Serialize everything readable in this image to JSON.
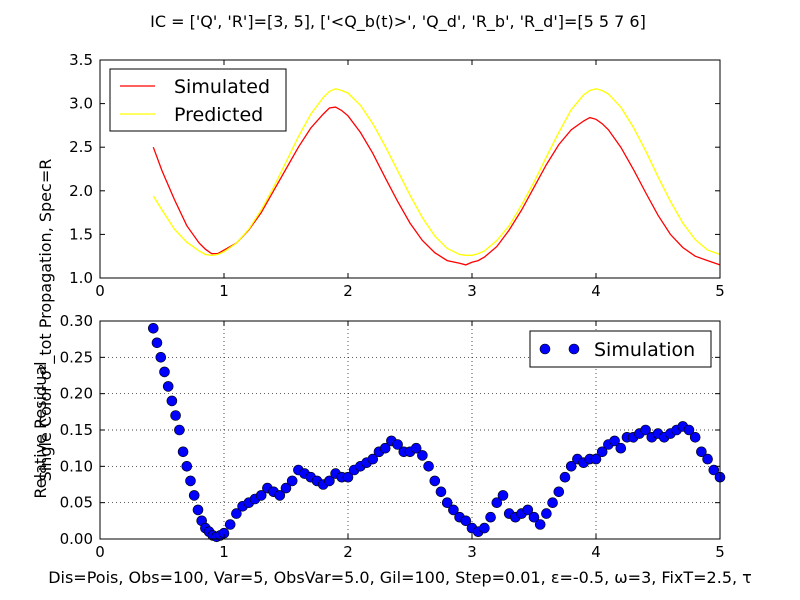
{
  "title": "IC = ['Q', 'R']=[3, 5], ['<Q_b(t)>', 'Q_d', 'R_b', 'R_d']=[5 5 7 6]",
  "shared_ylabel": "Single Color σ²_tot  Propagation, Spec=R",
  "footer_xlabel": "Dis=Pois, Obs=100, Var=5, ObsVar=5.0, Gil=100, Step=0.01, ε=-0.5, ω=3, FixT=2.5, τ",
  "colors": {
    "simulated": "#ff0000",
    "predicted": "#ffff00",
    "simulation": "#0000ff"
  },
  "chart_data": [
    {
      "type": "line",
      "xlim": [
        0,
        5
      ],
      "ylim": [
        1.0,
        3.5
      ],
      "xticks": [
        "0",
        "1",
        "2",
        "3",
        "4",
        "5"
      ],
      "yticks": [
        "1.0",
        "1.5",
        "2.0",
        "2.5",
        "3.0",
        "3.5"
      ],
      "grid": false,
      "legend_position": "top-left",
      "series": [
        {
          "name": "Simulated",
          "x": [
            0.43,
            0.5,
            0.6,
            0.7,
            0.8,
            0.85,
            0.9,
            0.95,
            1.0,
            1.1,
            1.2,
            1.3,
            1.4,
            1.5,
            1.6,
            1.7,
            1.8,
            1.85,
            1.9,
            1.95,
            2.0,
            2.1,
            2.2,
            2.3,
            2.4,
            2.5,
            2.6,
            2.7,
            2.8,
            2.9,
            2.95,
            3.0,
            3.05,
            3.1,
            3.2,
            3.3,
            3.4,
            3.5,
            3.6,
            3.7,
            3.8,
            3.9,
            3.95,
            4.0,
            4.05,
            4.1,
            4.2,
            4.3,
            4.4,
            4.5,
            4.6,
            4.7,
            4.8,
            4.9,
            5.0
          ],
          "y": [
            2.5,
            2.23,
            1.9,
            1.6,
            1.4,
            1.33,
            1.28,
            1.28,
            1.32,
            1.4,
            1.55,
            1.75,
            2.0,
            2.25,
            2.5,
            2.72,
            2.88,
            2.95,
            2.96,
            2.92,
            2.86,
            2.67,
            2.43,
            2.15,
            1.88,
            1.63,
            1.43,
            1.29,
            1.2,
            1.17,
            1.15,
            1.18,
            1.2,
            1.24,
            1.36,
            1.55,
            1.78,
            2.04,
            2.3,
            2.53,
            2.7,
            2.8,
            2.84,
            2.82,
            2.77,
            2.7,
            2.5,
            2.25,
            1.98,
            1.72,
            1.5,
            1.35,
            1.25,
            1.2,
            1.15
          ]
        },
        {
          "name": "Predicted",
          "x": [
            0.43,
            0.5,
            0.6,
            0.7,
            0.8,
            0.85,
            0.9,
            0.95,
            1.0,
            1.1,
            1.2,
            1.3,
            1.4,
            1.5,
            1.6,
            1.7,
            1.8,
            1.85,
            1.9,
            1.95,
            2.0,
            2.1,
            2.2,
            2.3,
            2.4,
            2.5,
            2.6,
            2.7,
            2.8,
            2.9,
            2.95,
            3.0,
            3.05,
            3.1,
            3.2,
            3.3,
            3.4,
            3.5,
            3.6,
            3.7,
            3.8,
            3.9,
            3.95,
            4.0,
            4.05,
            4.1,
            4.2,
            4.3,
            4.4,
            4.5,
            4.6,
            4.7,
            4.8,
            4.9,
            5.0
          ],
          "y": [
            1.94,
            1.78,
            1.56,
            1.41,
            1.31,
            1.27,
            1.26,
            1.27,
            1.3,
            1.4,
            1.56,
            1.78,
            2.04,
            2.33,
            2.62,
            2.88,
            3.07,
            3.14,
            3.17,
            3.15,
            3.12,
            2.98,
            2.77,
            2.51,
            2.23,
            1.95,
            1.69,
            1.48,
            1.34,
            1.27,
            1.26,
            1.26,
            1.28,
            1.31,
            1.43,
            1.6,
            1.84,
            2.1,
            2.39,
            2.67,
            2.93,
            3.1,
            3.15,
            3.17,
            3.15,
            3.11,
            2.96,
            2.73,
            2.46,
            2.16,
            1.88,
            1.63,
            1.44,
            1.32,
            1.27
          ]
        }
      ]
    },
    {
      "type": "scatter",
      "xlim": [
        0,
        5
      ],
      "ylim": [
        0.0,
        0.3
      ],
      "xticks": [
        "0",
        "1",
        "2",
        "3",
        "4",
        "5"
      ],
      "yticks": [
        "0.00",
        "0.05",
        "0.10",
        "0.15",
        "0.20",
        "0.25",
        "0.30"
      ],
      "xlabel": "",
      "ylabel": "Relative Residual",
      "grid": true,
      "legend_position": "top-right",
      "series": [
        {
          "name": "Simulation",
          "x": [
            0.43,
            0.46,
            0.49,
            0.52,
            0.55,
            0.58,
            0.61,
            0.64,
            0.67,
            0.7,
            0.73,
            0.76,
            0.79,
            0.82,
            0.85,
            0.88,
            0.91,
            0.94,
            0.97,
            1.0,
            1.05,
            1.1,
            1.15,
            1.2,
            1.25,
            1.3,
            1.35,
            1.4,
            1.45,
            1.5,
            1.55,
            1.6,
            1.65,
            1.7,
            1.75,
            1.8,
            1.85,
            1.9,
            1.95,
            2.0,
            2.05,
            2.1,
            2.15,
            2.2,
            2.25,
            2.3,
            2.35,
            2.4,
            2.45,
            2.5,
            2.55,
            2.6,
            2.65,
            2.7,
            2.75,
            2.8,
            2.85,
            2.9,
            2.95,
            3.0,
            3.05,
            3.1,
            3.15,
            3.2,
            3.25,
            3.3,
            3.35,
            3.4,
            3.45,
            3.5,
            3.55,
            3.6,
            3.65,
            3.7,
            3.75,
            3.8,
            3.85,
            3.9,
            3.95,
            4.0,
            4.05,
            4.1,
            4.15,
            4.2,
            4.25,
            4.3,
            4.35,
            4.4,
            4.45,
            4.5,
            4.55,
            4.6,
            4.65,
            4.7,
            4.75,
            4.8,
            4.85,
            4.9,
            4.95,
            5.0
          ],
          "y": [
            0.29,
            0.27,
            0.25,
            0.23,
            0.21,
            0.19,
            0.17,
            0.15,
            0.12,
            0.1,
            0.08,
            0.06,
            0.04,
            0.025,
            0.015,
            0.01,
            0.005,
            0.003,
            0.005,
            0.008,
            0.02,
            0.035,
            0.045,
            0.05,
            0.055,
            0.06,
            0.07,
            0.065,
            0.06,
            0.07,
            0.08,
            0.095,
            0.09,
            0.085,
            0.08,
            0.075,
            0.08,
            0.09,
            0.085,
            0.085,
            0.095,
            0.1,
            0.105,
            0.11,
            0.12,
            0.125,
            0.135,
            0.13,
            0.12,
            0.12,
            0.125,
            0.115,
            0.1,
            0.08,
            0.065,
            0.05,
            0.04,
            0.03,
            0.025,
            0.015,
            0.01,
            0.015,
            0.03,
            0.05,
            0.06,
            0.035,
            0.03,
            0.035,
            0.04,
            0.03,
            0.02,
            0.035,
            0.05,
            0.065,
            0.085,
            0.1,
            0.11,
            0.105,
            0.11,
            0.11,
            0.12,
            0.13,
            0.135,
            0.125,
            0.14,
            0.14,
            0.145,
            0.15,
            0.14,
            0.145,
            0.14,
            0.145,
            0.15,
            0.155,
            0.15,
            0.14,
            0.12,
            0.11,
            0.095,
            0.085
          ]
        }
      ]
    }
  ]
}
